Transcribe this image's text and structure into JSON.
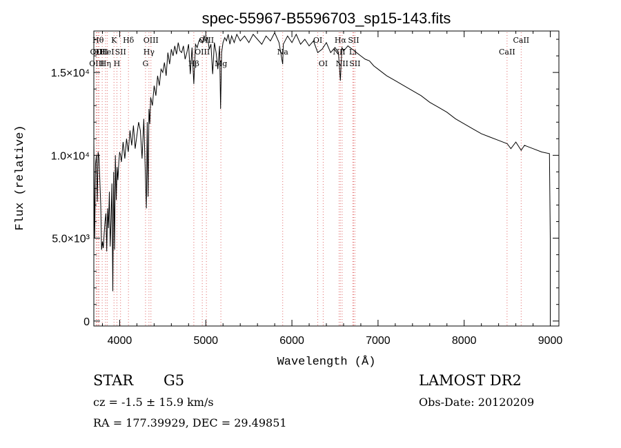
{
  "chart_data": {
    "type": "line",
    "title": "spec-55967-B5596703_sp15-143.fits",
    "xlabel": "Wavelength (Å)",
    "ylabel": "Flux (relative)",
    "xlim": [
      3700,
      9100
    ],
    "ylim": [
      -300,
      17500
    ],
    "x_ticks": [
      4000,
      5000,
      6000,
      7000,
      8000,
      9000
    ],
    "x_tick_labels": [
      "4000",
      "5000",
      "6000",
      "7000",
      "8000",
      "9000"
    ],
    "y_ticks": [
      0,
      5000,
      10000,
      15000
    ],
    "y_tick_labels": [
      "0",
      "5.0×10³",
      "1.0×10⁴",
      "1.5×10⁴"
    ],
    "grid": false,
    "series": [
      {
        "x": [
          3700,
          3710,
          3720,
          3730,
          3740,
          3750,
          3760,
          3770,
          3780,
          3790,
          3800,
          3810,
          3820,
          3830,
          3840,
          3850,
          3860,
          3870,
          3880,
          3890,
          3900,
          3910,
          3920,
          3930,
          3940,
          3950,
          3960,
          3970,
          3980,
          3990,
          4000,
          4010,
          4020,
          4040,
          4060,
          4080,
          4100,
          4120,
          4140,
          4160,
          4180,
          4200,
          4220,
          4240,
          4260,
          4280,
          4300,
          4310,
          4320,
          4330,
          4340,
          4350,
          4360,
          4380,
          4400,
          4420,
          4440,
          4460,
          4480,
          4500,
          4520,
          4540,
          4560,
          4580,
          4600,
          4620,
          4640,
          4660,
          4680,
          4700,
          4720,
          4740,
          4760,
          4780,
          4800,
          4820,
          4840,
          4861,
          4880,
          4900,
          4920,
          4940,
          4960,
          4980,
          5000,
          5020,
          5040,
          5060,
          5080,
          5100,
          5120,
          5140,
          5160,
          5172,
          5184,
          5200,
          5220,
          5240,
          5260,
          5280,
          5300,
          5330,
          5360,
          5400,
          5450,
          5500,
          5550,
          5600,
          5650,
          5700,
          5750,
          5800,
          5850,
          5893,
          5900,
          5950,
          6000,
          6050,
          6100,
          6150,
          6200,
          6250,
          6300,
          6350,
          6400,
          6450,
          6500,
          6540,
          6563,
          6580,
          6600,
          6650,
          6700,
          6750,
          6800,
          6850,
          6900,
          6950,
          7000,
          7100,
          7200,
          7300,
          7400,
          7500,
          7600,
          7700,
          7800,
          7900,
          8000,
          8100,
          8200,
          8300,
          8400,
          8500,
          8542,
          8600,
          8662,
          8700,
          8800,
          8900,
          8990,
          9000,
          9000
        ],
        "y": [
          11000,
          5000,
          9500,
          10000,
          7200,
          10200,
          9800,
          8500,
          7000,
          4300,
          4800,
          4400,
          5300,
          6000,
          6500,
          4200,
          6800,
          5600,
          7800,
          4500,
          6100,
          8300,
          1800,
          9000,
          4300,
          10000,
          7300,
          9300,
          8500,
          9600,
          10200,
          10000,
          9600,
          10800,
          9800,
          11000,
          10200,
          11500,
          10600,
          11800,
          10400,
          11200,
          12000,
          11500,
          9800,
          12200,
          8500,
          6800,
          12000,
          7500,
          12800,
          11900,
          13500,
          13000,
          14200,
          13600,
          14800,
          14200,
          15200,
          15000,
          15600,
          14800,
          16200,
          15500,
          16400,
          16000,
          16600,
          16100,
          16800,
          16300,
          16200,
          16600,
          15800,
          16200,
          16700,
          14900,
          16500,
          14300,
          16700,
          16500,
          16900,
          17000,
          16800,
          17200,
          16900,
          17100,
          16400,
          16700,
          14900,
          16800,
          16200,
          15200,
          16600,
          12800,
          16200,
          16800,
          17100,
          16900,
          17300,
          16700,
          17200,
          16800,
          17300,
          16900,
          17200,
          16800,
          17300,
          17000,
          16700,
          17200,
          16900,
          17400,
          16800,
          15500,
          16700,
          17200,
          16800,
          17300,
          16700,
          17000,
          16600,
          16900,
          16200,
          16400,
          16800,
          16200,
          16500,
          16200,
          14500,
          16500,
          16300,
          16600,
          16400,
          16200,
          16000,
          15800,
          15700,
          15400,
          15200,
          14800,
          14500,
          14200,
          13900,
          13600,
          13200,
          12900,
          12600,
          12200,
          11900,
          11600,
          11300,
          11100,
          10900,
          10700,
          10400,
          10800,
          10300,
          10600,
          10400,
          10200,
          10100,
          5000,
          0
        ]
      }
    ],
    "line_markers": [
      {
        "x": 3727,
        "row": 1,
        "label": "OII"
      },
      {
        "x": 3734,
        "row": 2,
        "label": "OIII"
      },
      {
        "x": 3750,
        "row": 0,
        "label": "Hθ"
      },
      {
        "x": 3760,
        "row": 1,
        "label": "OII"
      },
      {
        "x": 3797,
        "row": 1,
        "label": "OII"
      },
      {
        "x": 3835,
        "row": 2,
        "label": "Hη"
      },
      {
        "x": 3855,
        "row": 1,
        "label": "HeI"
      },
      {
        "x": 3934,
        "row": 0,
        "label": "K"
      },
      {
        "x": 3968,
        "row": 2,
        "label": "H"
      },
      {
        "x": 4010,
        "row": 1,
        "label": "SII"
      },
      {
        "x": 4102,
        "row": 0,
        "label": "Hδ"
      },
      {
        "x": 4300,
        "row": 2,
        "label": "G"
      },
      {
        "x": 4340,
        "row": 1,
        "label": "Hγ"
      },
      {
        "x": 4363,
        "row": 0,
        "label": "OIII"
      },
      {
        "x": 4861,
        "row": 2,
        "label": "Hβ"
      },
      {
        "x": 4959,
        "row": 1,
        "label": "OIII"
      },
      {
        "x": 5007,
        "row": 0,
        "label": "OIII"
      },
      {
        "x": 5175,
        "row": 2,
        "label": "Mg"
      },
      {
        "x": 5893,
        "row": 1,
        "label": "Na"
      },
      {
        "x": 6300,
        "row": 0,
        "label": "OI"
      },
      {
        "x": 6363,
        "row": 2,
        "label": "OI"
      },
      {
        "x": 6548,
        "row": 1,
        "label": "NII"
      },
      {
        "x": 6563,
        "row": 0,
        "label": "Hα"
      },
      {
        "x": 6583,
        "row": 2,
        "label": "NII"
      },
      {
        "x": 6707,
        "row": 1,
        "label": "Li"
      },
      {
        "x": 6716,
        "row": 0,
        "label": "SII"
      },
      {
        "x": 6731,
        "row": 2,
        "label": "SII"
      },
      {
        "x": 8498,
        "row": 1,
        "label": "CaII"
      },
      {
        "x": 8662,
        "row": 0,
        "label": "CaII"
      }
    ],
    "colors": {
      "spectrum": "#000000",
      "marker_line": "#e06666",
      "axes": "#000000"
    }
  },
  "info": {
    "object_class": "STAR",
    "subclass": "G5",
    "survey": "LAMOST DR2",
    "redshift": "cz = -1.5 ± 15.9 km/s",
    "obs_date": "Obs-Date: 20120209",
    "coords": "RA = 177.39929, DEC =  29.49851"
  }
}
